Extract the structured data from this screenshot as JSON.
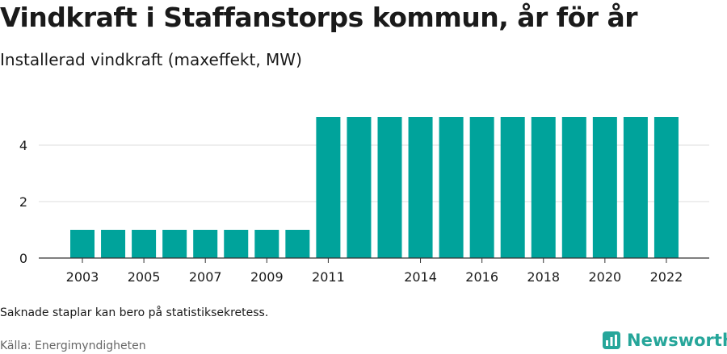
{
  "title": "Vindkraft i Staffanstorps kommun, år för år",
  "subtitle": "Installerad vindkraft (maxeffekt, MW)",
  "footnote": "Saknade staplar kan bero på statistiksekretess.",
  "source": "Källa: Energimyndigheten",
  "brand": {
    "name": "Newsworthy",
    "icon": "newsworthy-logo-icon",
    "color": "#26a69a"
  },
  "chart_data": {
    "type": "bar",
    "categories": [
      "2003",
      "2004",
      "2005",
      "2006",
      "2007",
      "2008",
      "2009",
      "2010",
      "2011",
      "2012",
      "2013",
      "2014",
      "2015",
      "2016",
      "2017",
      "2018",
      "2019",
      "2020",
      "2021",
      "2022"
    ],
    "values": [
      1,
      1,
      1,
      1,
      1,
      1,
      1,
      1,
      5,
      5,
      5,
      5,
      5,
      5,
      5,
      5,
      5,
      5,
      5,
      5
    ],
    "x_tick_labels": [
      "2003",
      "2005",
      "2007",
      "2009",
      "2011",
      "2014",
      "2016",
      "2018",
      "2020",
      "2022"
    ],
    "y_ticks": [
      0,
      2,
      4
    ],
    "ylim": [
      0,
      5.4
    ],
    "bar_color": "#00a39b",
    "grid": true
  }
}
